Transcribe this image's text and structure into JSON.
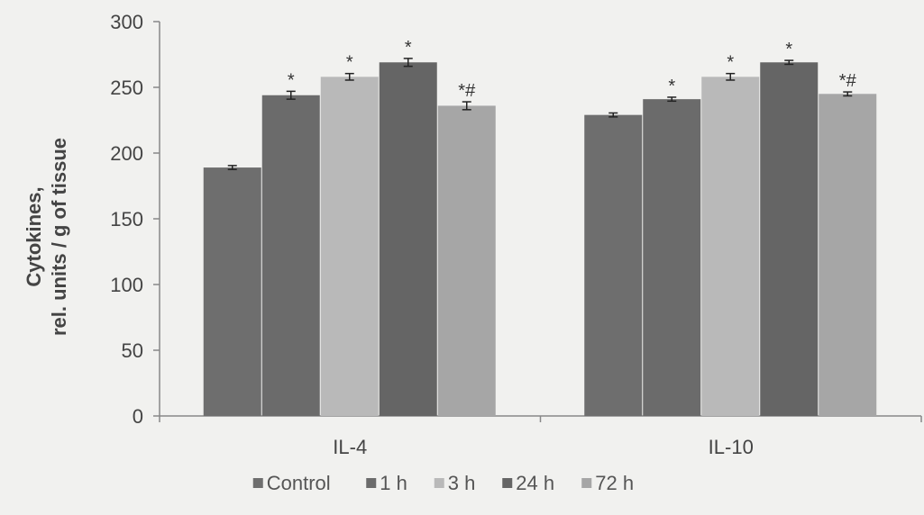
{
  "chart_data": {
    "type": "bar",
    "title": "",
    "xlabel": "",
    "ylabel": [
      "Cytokines,",
      "rel. units / g of tissue"
    ],
    "ylim": [
      0,
      300
    ],
    "yticks": [
      0,
      50,
      100,
      150,
      200,
      250,
      300
    ],
    "categories": [
      "IL-4",
      "IL-10"
    ],
    "series": [
      {
        "name": "Control",
        "color": "#6e6e6e",
        "values": [
          189,
          229
        ],
        "errors": [
          1.5,
          1.5
        ],
        "sig": [
          "",
          ""
        ]
      },
      {
        "name": "1 h",
        "color": "#6b6b6b",
        "values": [
          244,
          241
        ],
        "errors": [
          3,
          1.5
        ],
        "sig": [
          "*",
          "*"
        ]
      },
      {
        "name": "3 h",
        "color": "#b9b9b9",
        "values": [
          258,
          258
        ],
        "errors": [
          2.5,
          2.5
        ],
        "sig": [
          "*",
          "*"
        ]
      },
      {
        "name": "24 h",
        "color": "#656565",
        "values": [
          269,
          269
        ],
        "errors": [
          3,
          1.5
        ],
        "sig": [
          "*",
          "*"
        ]
      },
      {
        "name": "72 h",
        "color": "#a6a6a6",
        "values": [
          236,
          245
        ],
        "errors": [
          3,
          1.5
        ],
        "sig": [
          "*#",
          "*#"
        ]
      }
    ],
    "grid": false,
    "legend_position": "bottom"
  }
}
